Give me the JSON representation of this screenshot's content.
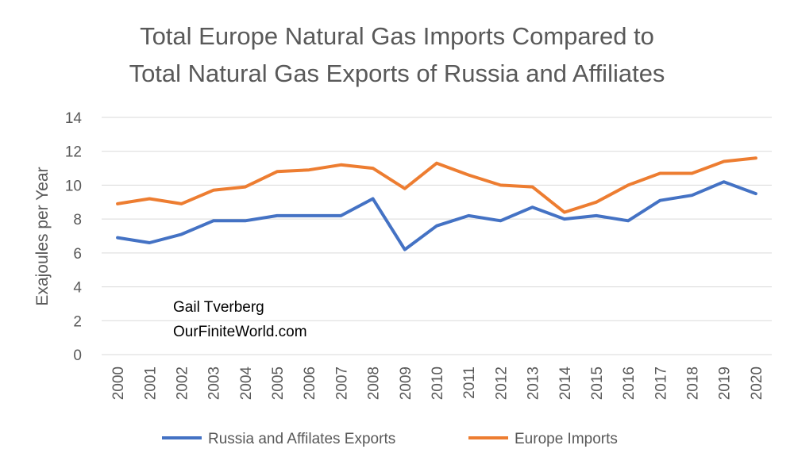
{
  "chart_data": {
    "type": "line",
    "title_lines": [
      "Total Europe Natural Gas Imports Compared to",
      "Total Natural Gas Exports of Russia and Affiliates"
    ],
    "ylabel": "Exajoules per Year",
    "xlabel": "",
    "ylim": [
      0,
      14
    ],
    "yticks": [
      0,
      2,
      4,
      6,
      8,
      10,
      12,
      14
    ],
    "grid": true,
    "legend_position": "bottom",
    "categories": [
      "2000",
      "2001",
      "2002",
      "2003",
      "2004",
      "2005",
      "2006",
      "2007",
      "2008",
      "2009",
      "2010",
      "2011",
      "2012",
      "2013",
      "2014",
      "2015",
      "2016",
      "2017",
      "2018",
      "2019",
      "2020"
    ],
    "series": [
      {
        "name": "Russia and Affilates Exports",
        "color": "#4472c4",
        "values": [
          6.9,
          6.6,
          7.1,
          7.9,
          7.9,
          8.2,
          8.2,
          8.2,
          9.2,
          6.2,
          7.6,
          8.2,
          7.9,
          8.7,
          8.0,
          8.2,
          7.9,
          9.1,
          9.4,
          10.2,
          9.5
        ]
      },
      {
        "name": "Europe Imports",
        "color": "#ed7d31",
        "values": [
          8.9,
          9.2,
          8.9,
          9.7,
          9.9,
          10.8,
          10.9,
          11.2,
          11.0,
          9.8,
          11.3,
          10.6,
          10.0,
          9.9,
          8.4,
          9.0,
          10.0,
          10.7,
          10.7,
          11.4,
          11.6
        ]
      }
    ],
    "annotations": [
      "Gail Tverberg",
      "OurFiniteWorld.com"
    ]
  }
}
